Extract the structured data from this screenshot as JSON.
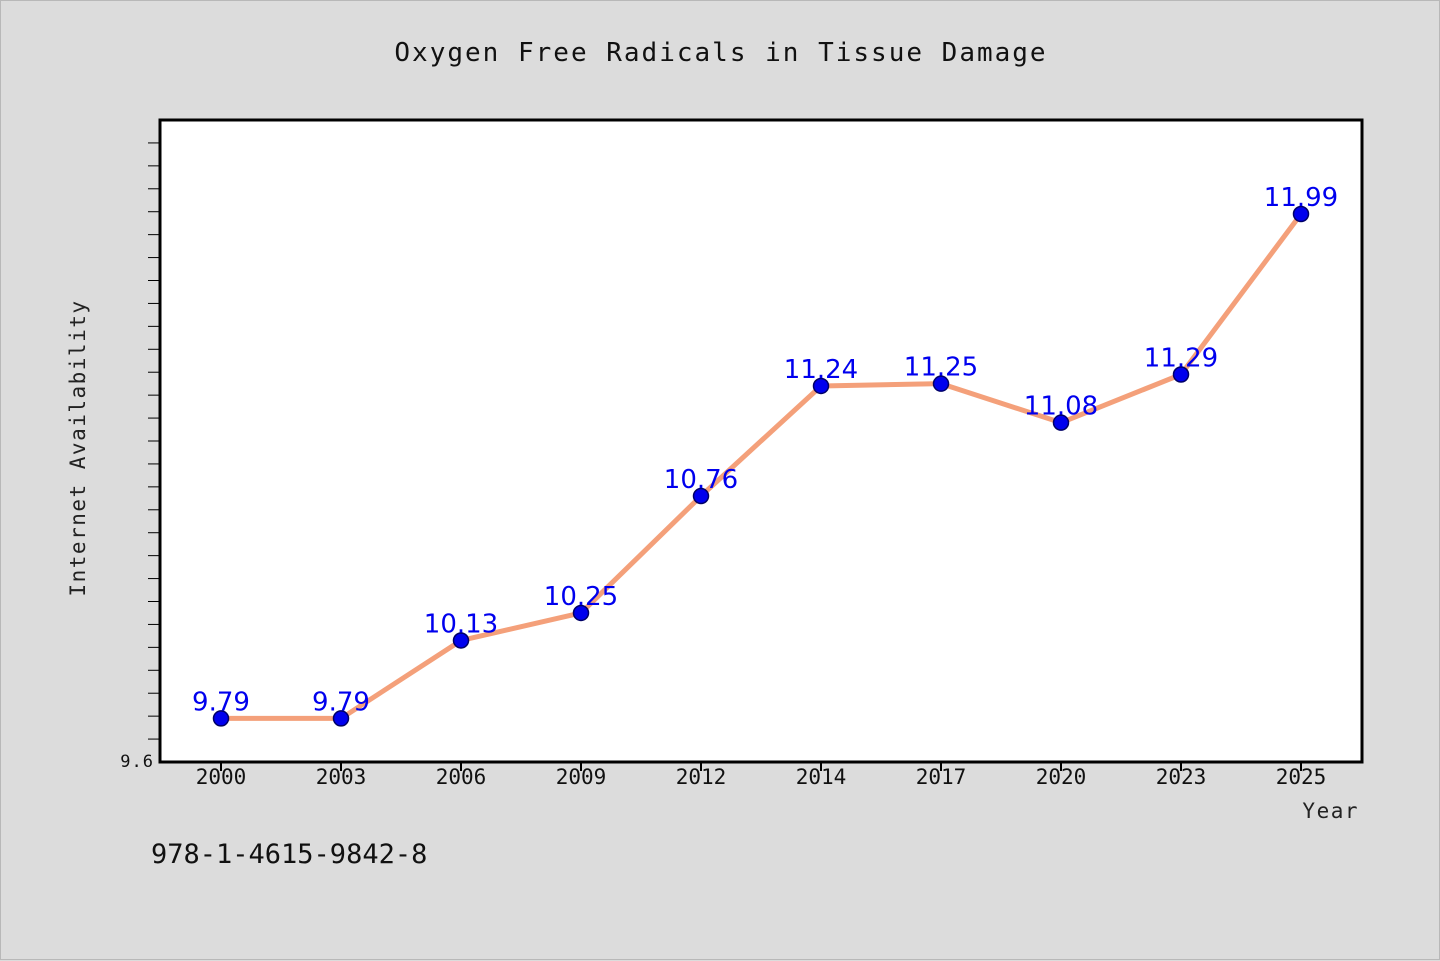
{
  "chart_data": {
    "type": "line",
    "title": "Oxygen Free Radicals in Tissue Damage",
    "xlabel": "Year",
    "ylabel": "Internet Availability",
    "categories": [
      "2000",
      "2003",
      "2006",
      "2009",
      "2012",
      "2014",
      "2017",
      "2020",
      "2023",
      "2025"
    ],
    "series": [
      {
        "values": [
          9.79,
          9.79,
          10.13,
          10.25,
          10.76,
          11.24,
          11.25,
          11.08,
          11.29,
          11.99
        ],
        "labels": [
          "9.79",
          "9.79",
          "10.13",
          "10.25",
          "10.76",
          "11.24",
          "11.25",
          "11.08",
          "11.29",
          "11.99"
        ]
      }
    ],
    "ylim": [
      9.6,
      12.4
    ],
    "y_tick_labels": [
      "9.6"
    ],
    "grid": false,
    "colors": {
      "line": "#f4a07a",
      "marker": "#0000ee",
      "marker_edge": "#000066",
      "data_label": "#0000ee",
      "background": "#dcdcdc",
      "plot_background": "#ffffff"
    }
  },
  "footer": {
    "isbn": "978-1-4615-9842-8"
  }
}
